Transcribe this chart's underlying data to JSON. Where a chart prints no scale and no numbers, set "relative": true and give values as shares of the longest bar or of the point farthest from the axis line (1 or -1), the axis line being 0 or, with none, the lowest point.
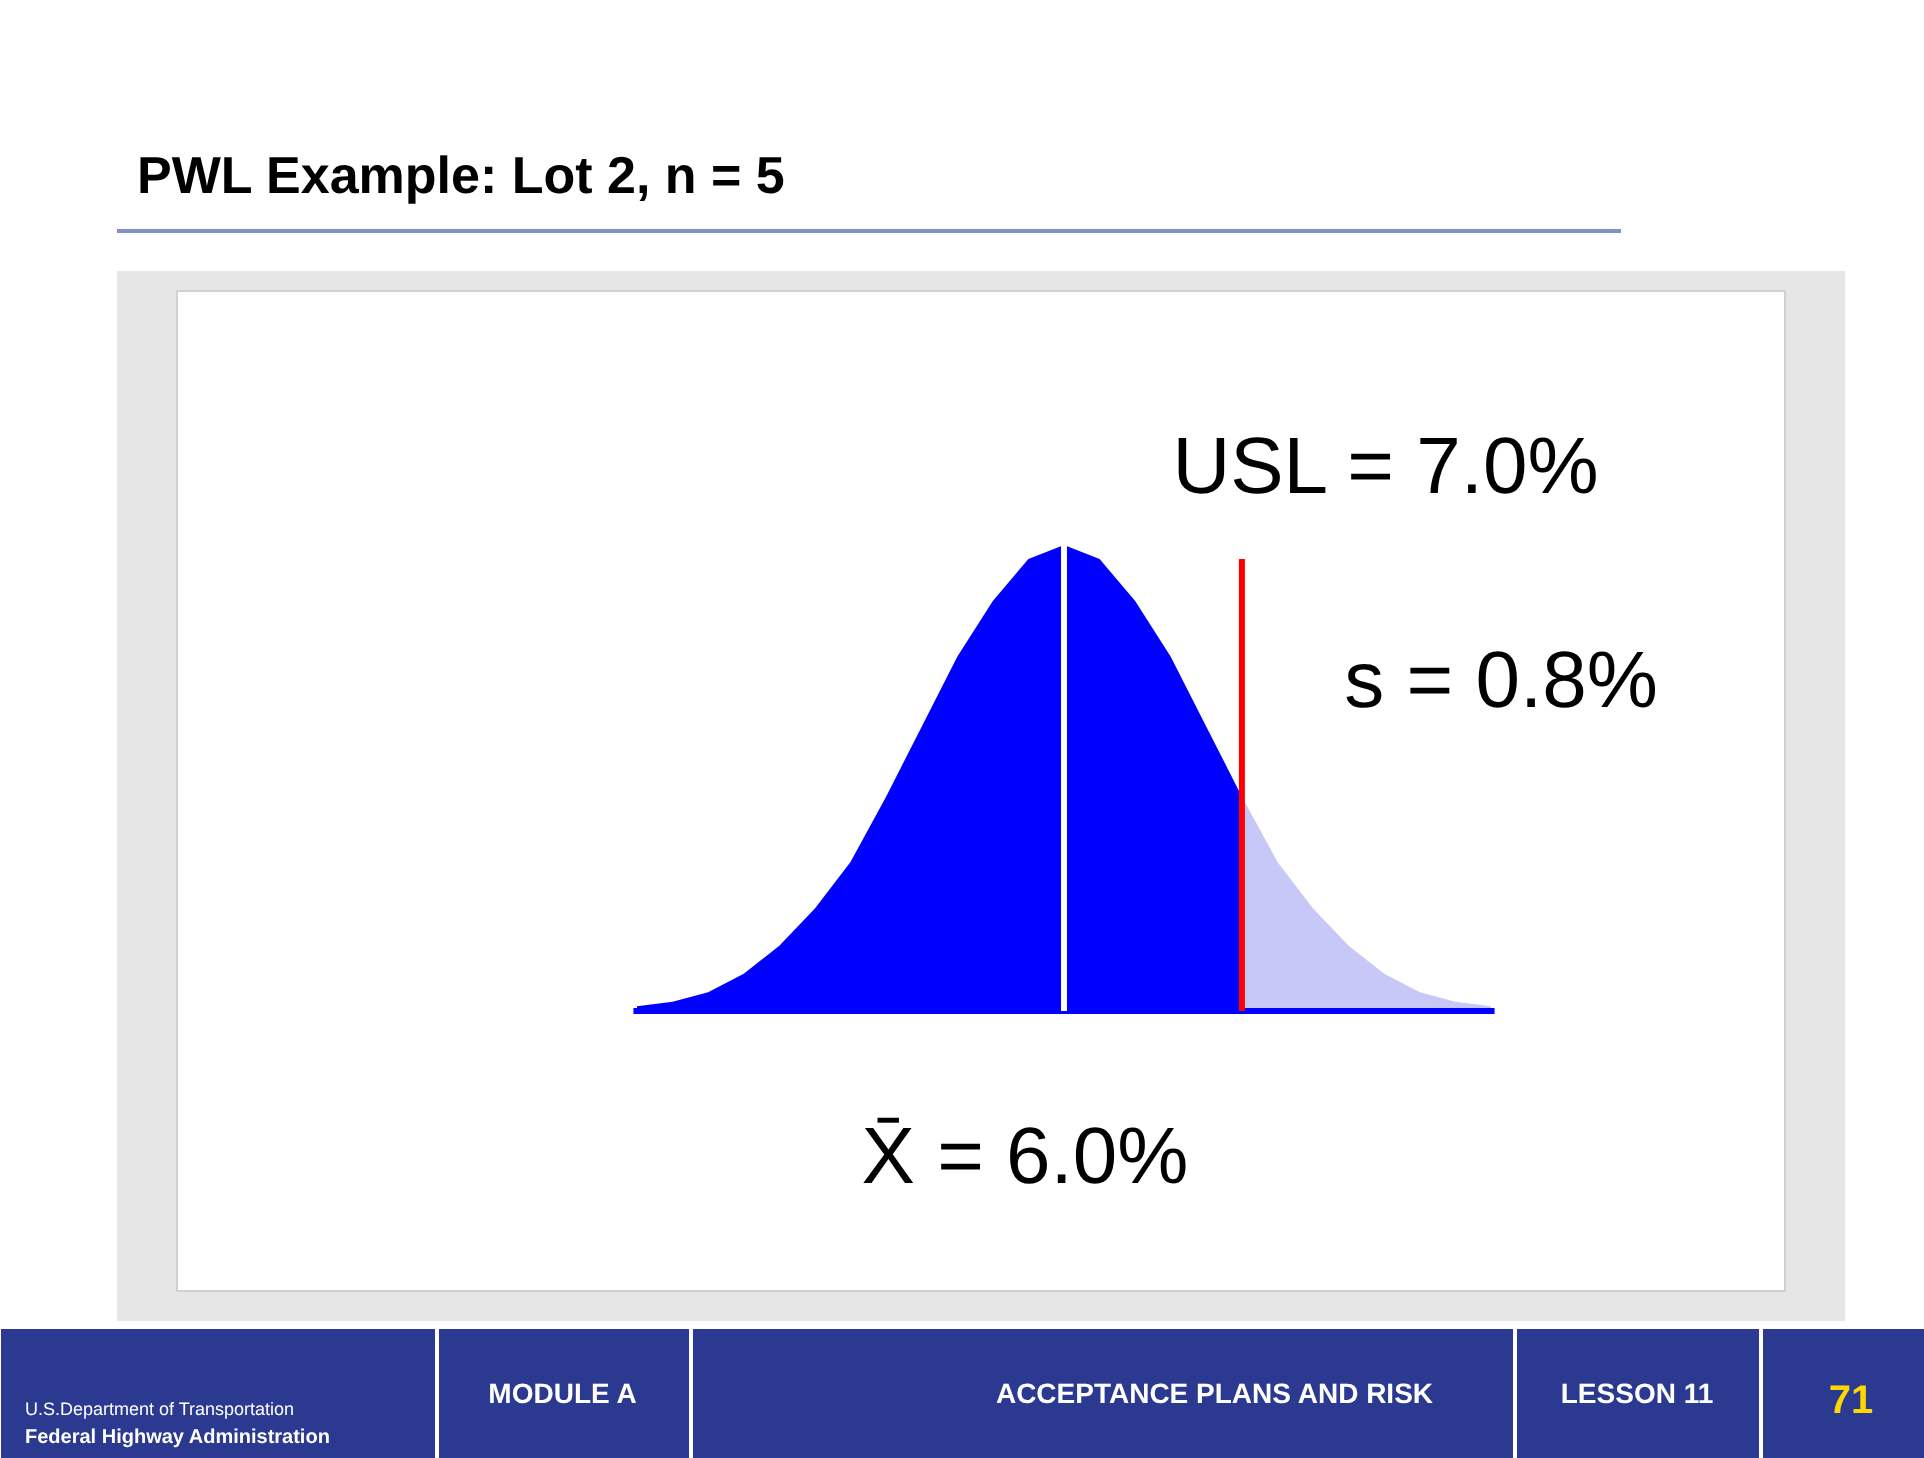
{
  "chart_data": {
    "type": "area",
    "title": "PWL Example: Lot 2, n = 5",
    "relative": true,
    "tick_labels": false,
    "categories": [
      null,
      null,
      null,
      null,
      null,
      null,
      null,
      null,
      null,
      null,
      null,
      null,
      null,
      null,
      null,
      null,
      null,
      null,
      null,
      null,
      null,
      null,
      null,
      null,
      null
    ],
    "series": [
      {
        "color": "#0000ff",
        "values": [
          0.01,
          0.02,
          0.04,
          0.08,
          0.14,
          0.22,
          0.32,
          0.46,
          0.61,
          0.76,
          0.88,
          0.97,
          1,
          0.97,
          0.88,
          0.76,
          0.61,
          0.46,
          null,
          null,
          null,
          null,
          null,
          null,
          null
        ]
      },
      {
        "color": "#c8c8f8",
        "values": [
          null,
          null,
          null,
          null,
          null,
          null,
          null,
          null,
          null,
          null,
          null,
          null,
          null,
          null,
          null,
          null,
          null,
          0.46,
          0.32,
          0.22,
          0.14,
          0.08,
          0.04,
          0.02,
          0.01
        ]
      }
    ],
    "annotations": [
      "USL = 7.0%",
      "s = 0.8%",
      "X̄ = 6.0%",
      "U.S.Department of Transportation",
      "Federal Highway Administration",
      "MODULE A",
      "ACCEPTANCE PLANS AND RISK",
      "LESSON 11",
      "71"
    ]
  }
}
